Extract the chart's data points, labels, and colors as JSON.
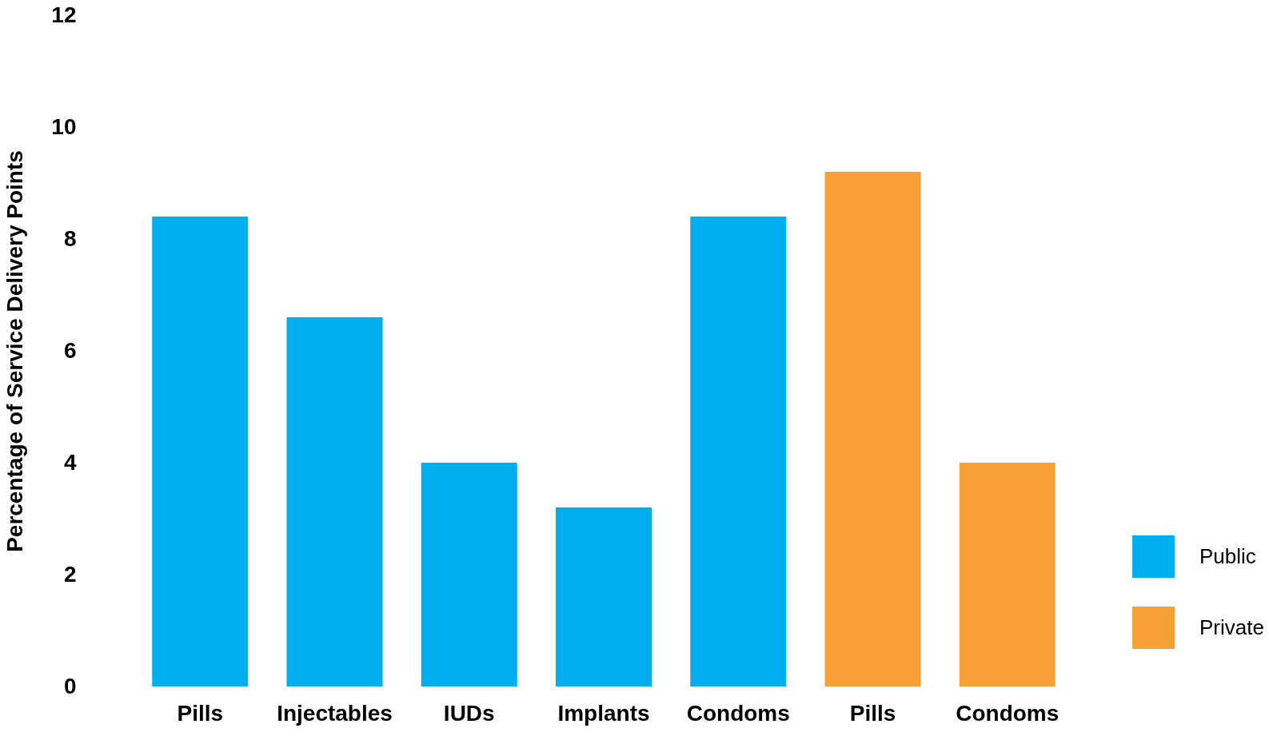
{
  "chart_data": {
    "type": "bar",
    "ylabel": "Percentage of Service Delivery Points",
    "categories": [
      "Pills",
      "Injectables",
      "IUDs",
      "Implants",
      "Condoms",
      "Pills",
      "Condoms"
    ],
    "series": [
      {
        "name": "Public",
        "color": "#00aeef",
        "values": [
          8.4,
          6.6,
          4.0,
          3.2,
          8.4,
          null,
          null
        ]
      },
      {
        "name": "Private",
        "color": "#f6a035",
        "values": [
          null,
          null,
          null,
          null,
          null,
          9.2,
          4.0
        ]
      }
    ],
    "ylim": [
      0,
      12
    ],
    "yticks": [
      0,
      2,
      4,
      6,
      8,
      10,
      12
    ],
    "grid": false,
    "legend": "bottom right"
  }
}
